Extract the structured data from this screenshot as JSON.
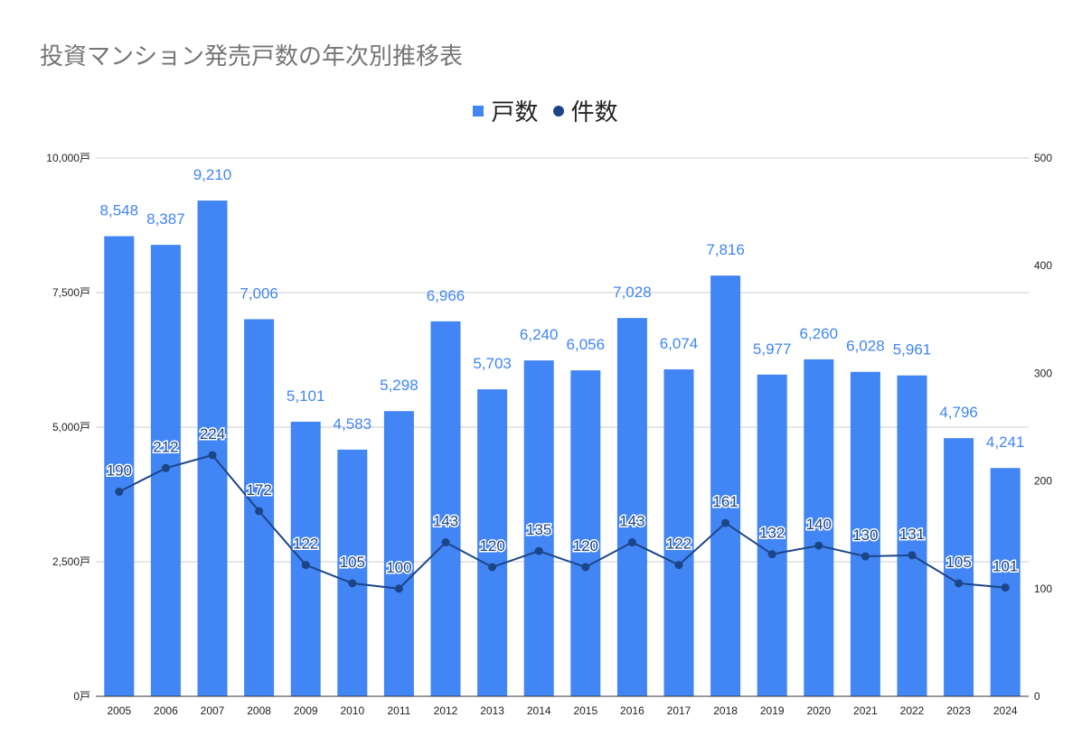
{
  "chart_data": {
    "type": "bar+line",
    "title": "投資マンション発売戸数の年次別推移表",
    "categories": [
      "2005",
      "2006",
      "2007",
      "2008",
      "2009",
      "2010",
      "2011",
      "2012",
      "2013",
      "2014",
      "2015",
      "2016",
      "2017",
      "2018",
      "2019",
      "2020",
      "2021",
      "2022",
      "2023",
      "2024"
    ],
    "series": [
      {
        "name": "戸数",
        "type": "bar",
        "axis": "left",
        "color": "#4285f4",
        "values": [
          8548,
          8387,
          9210,
          7006,
          5101,
          4583,
          5298,
          6966,
          5703,
          6240,
          6056,
          7028,
          6074,
          7816,
          5977,
          6260,
          6028,
          5961,
          4796,
          4241
        ],
        "labels": [
          "8,548",
          "8,387",
          "9,210",
          "7,006",
          "5,101",
          "4,583",
          "5,298",
          "6,966",
          "5,703",
          "6,240",
          "6,056",
          "7,028",
          "6,074",
          "7,816",
          "5,977",
          "6,260",
          "6,028",
          "5,961",
          "4,796",
          "4,241"
        ]
      },
      {
        "name": "件数",
        "type": "line",
        "axis": "right",
        "color": "#1c4587",
        "values": [
          190,
          212,
          224,
          172,
          122,
          105,
          100,
          143,
          120,
          135,
          120,
          143,
          122,
          161,
          132,
          140,
          130,
          131,
          105,
          101
        ]
      }
    ],
    "left_axis": {
      "range": [
        0,
        10000
      ],
      "ticks": [
        "0戸",
        "2,500戸",
        "5,000戸",
        "7,500戸",
        "10,000戸"
      ]
    },
    "right_axis": {
      "range": [
        0,
        500
      ],
      "ticks": [
        "0",
        "100",
        "200",
        "300",
        "400",
        "500"
      ]
    },
    "grid": true,
    "legend_position": "top"
  }
}
